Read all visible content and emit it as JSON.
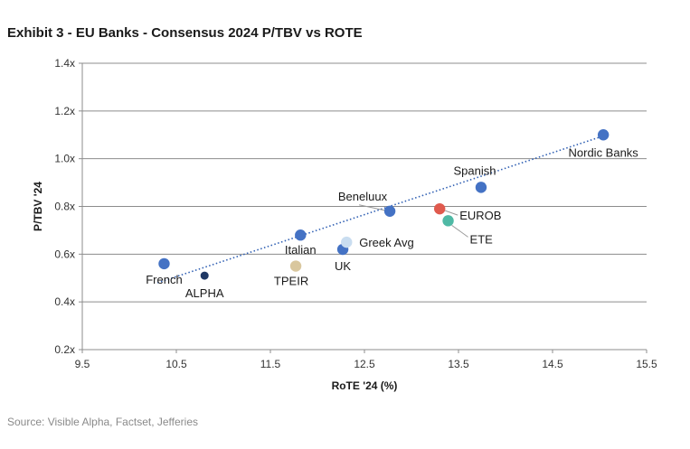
{
  "header": {
    "title": "Exhibit 3 - EU Banks - Consensus 2024 P/TBV vs ROTE"
  },
  "footer": {
    "source": "Source: Visible Alpha, Factset, Jefferies"
  },
  "chart_data": {
    "type": "scatter",
    "title": "Exhibit 3 - EU Banks - Consensus 2024 P/TBV vs ROTE",
    "xlabel": "RoTE '24 (%)",
    "ylabel": "P/TBV '24",
    "xlim": [
      9.5,
      15.5
    ],
    "ylim": [
      0.2,
      1.4
    ],
    "x_ticks": [
      "9.5",
      "10.5",
      "11.5",
      "12.5",
      "13.5",
      "14.5",
      "15.5"
    ],
    "y_ticks": [
      "0.2x",
      "0.4x",
      "0.6x",
      "0.8x",
      "1.0x",
      "1.2x",
      "1.4x"
    ],
    "grid": "horizontal",
    "trendline": {
      "style": "dotted",
      "color": "#2f5fb3",
      "from": [
        10.3,
        0.48
      ],
      "to": [
        15.0,
        1.09
      ]
    },
    "points": [
      {
        "label": "French",
        "x": 10.37,
        "y": 0.56,
        "color": "#4472c4"
      },
      {
        "label": "ALPHA",
        "x": 10.8,
        "y": 0.51,
        "color": "#1f3864"
      },
      {
        "label": "Italian",
        "x": 11.82,
        "y": 0.68,
        "color": "#4472c4"
      },
      {
        "label": "TPEIR",
        "x": 11.77,
        "y": 0.55,
        "color": "#d9c79e"
      },
      {
        "label": "UK",
        "x": 12.27,
        "y": 0.62,
        "color": "#4472c4"
      },
      {
        "label": "Greek Avg",
        "x": 12.31,
        "y": 0.65,
        "color": "#c9ddf0"
      },
      {
        "label": "Beneluux",
        "x": 12.77,
        "y": 0.78,
        "color": "#4472c4"
      },
      {
        "label": "EUROB",
        "x": 13.3,
        "y": 0.79,
        "color": "#e05a4e"
      },
      {
        "label": "ETE",
        "x": 13.39,
        "y": 0.74,
        "color": "#4fb9a5"
      },
      {
        "label": "Spanish",
        "x": 13.74,
        "y": 0.88,
        "color": "#4472c4"
      },
      {
        "label": "Nordic Banks",
        "x": 15.04,
        "y": 1.1,
        "color": "#4472c4"
      }
    ]
  }
}
